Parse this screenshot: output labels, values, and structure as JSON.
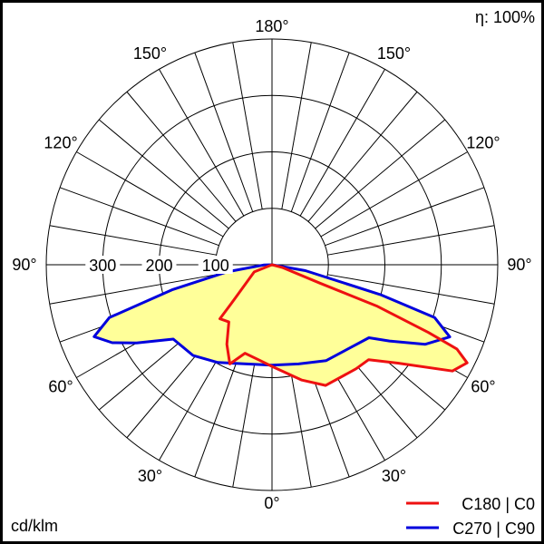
{
  "chart_data": {
    "type": "polar",
    "unit_label": "cd/klm",
    "efficiency_label": "η: 100%",
    "radial_ticks": [
      100,
      200,
      300
    ],
    "radial_max": 400,
    "angle_labels": [
      "0°",
      "30°",
      "60°",
      "90°",
      "120°",
      "150°",
      "180°"
    ],
    "angle_label_values": [
      0,
      30,
      60,
      90,
      120,
      150,
      180
    ],
    "spoke_step_deg": 10,
    "fill_color": "#ffff99",
    "series": [
      {
        "name": "C180 | C0",
        "color": "#ee1111",
        "left_plane": "C180",
        "right_plane": "C0",
        "left_points": [
          [
            0,
            180
          ],
          [
            7,
            171
          ],
          [
            17,
            164
          ],
          [
            23,
            191
          ],
          [
            29.6,
            162
          ],
          [
            37,
            127
          ],
          [
            44,
            133
          ],
          [
            47,
            94
          ],
          [
            68,
            34
          ],
          [
            90,
            0
          ]
        ],
        "right_points": [
          [
            0,
            180
          ],
          [
            14.5,
            211
          ],
          [
            24,
            234
          ],
          [
            39,
            237
          ],
          [
            45.5,
            240
          ],
          [
            52,
            283
          ],
          [
            59.5,
            371
          ],
          [
            63.3,
            387
          ],
          [
            65.5,
            360
          ],
          [
            66.6,
            302
          ],
          [
            68.5,
            201
          ],
          [
            69,
            91
          ],
          [
            75,
            20
          ],
          [
            90,
            0
          ]
        ]
      },
      {
        "name": "C270 | C90",
        "color": "#0000dd",
        "left_plane": "C270",
        "right_plane": "C90",
        "left_points": [
          [
            0,
            178
          ],
          [
            29,
            198
          ],
          [
            41,
            213
          ],
          [
            53,
            219
          ],
          [
            60,
            277
          ],
          [
            64,
            315
          ],
          [
            68,
            340
          ],
          [
            72,
            303
          ],
          [
            76,
            181
          ],
          [
            81,
            81
          ],
          [
            88,
            15
          ],
          [
            90,
            0
          ]
        ],
        "right_points": [
          [
            0,
            178
          ],
          [
            15,
            182
          ],
          [
            29.5,
            195
          ],
          [
            53,
            215
          ],
          [
            57,
            248
          ],
          [
            62.6,
            306
          ],
          [
            67.9,
            340
          ],
          [
            72,
            303
          ],
          [
            74.6,
            199
          ],
          [
            80,
            60
          ],
          [
            90,
            0
          ]
        ]
      }
    ]
  }
}
